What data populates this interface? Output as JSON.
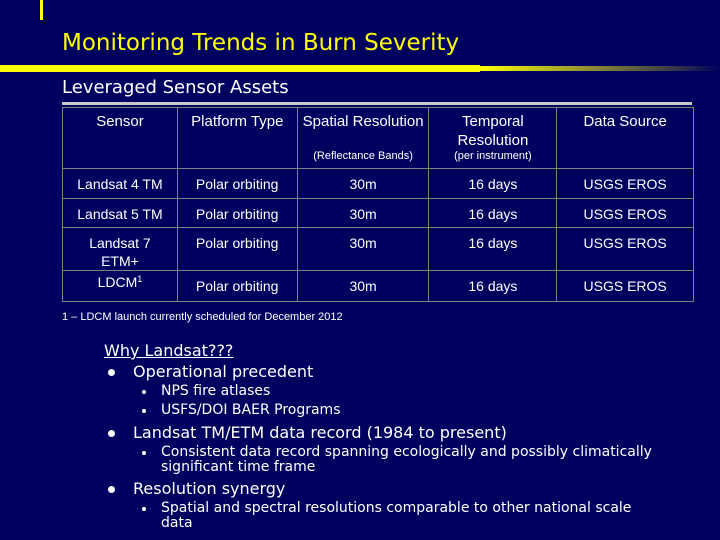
{
  "slide": {
    "title": "Monitoring Trends in Burn Severity",
    "subtitle": "Leveraged Sensor Assets"
  },
  "table": {
    "headers": [
      {
        "label": "Sensor",
        "note": ""
      },
      {
        "label": "Platform Type",
        "note": ""
      },
      {
        "label": "Spatial Resolution",
        "note": "(Reflectance Bands)"
      },
      {
        "label": "Temporal Resolution",
        "note": "(per instrument)"
      },
      {
        "label": "Data Source",
        "note": ""
      }
    ],
    "rows": [
      {
        "sensor": "Landsat 4 TM",
        "sensor_sup": "",
        "platform": "Polar orbiting",
        "spatial": "30m",
        "temporal": "16 days",
        "source": "USGS EROS"
      },
      {
        "sensor": "Landsat 5 TM",
        "sensor_sup": "",
        "platform": "Polar orbiting",
        "spatial": "30m",
        "temporal": "16 days",
        "source": "USGS EROS"
      },
      {
        "sensor": "Landsat 7 ETM+",
        "sensor_sup": "",
        "platform": "Polar orbiting",
        "spatial": "30m",
        "temporal": "16 days",
        "source": "USGS EROS"
      },
      {
        "sensor": "LDCM",
        "sensor_sup": "1",
        "platform": "Polar orbiting",
        "spatial": "30m",
        "temporal": "16 days",
        "source": "USGS EROS"
      }
    ]
  },
  "footnote": "1 – LDCM launch currently scheduled for December 2012",
  "why": {
    "heading": "Why Landsat???",
    "bullets": [
      {
        "text": "Operational precedent",
        "sub": [
          "NPS fire atlases",
          "USFS/DOI BAER Programs"
        ]
      },
      {
        "text": "Landsat TM/ETM data record (1984 to present)",
        "sub": [
          "Consistent data record spanning ecologically and possibly climatically significant time frame"
        ]
      },
      {
        "text": "Resolution synergy",
        "sub": [
          "Spatial and spectral resolutions comparable to other national scale data"
        ]
      }
    ]
  },
  "colors": {
    "background": "#00005e",
    "title": "#ffff00",
    "text": "#ffffff",
    "accent_bar": "#ffff00"
  }
}
